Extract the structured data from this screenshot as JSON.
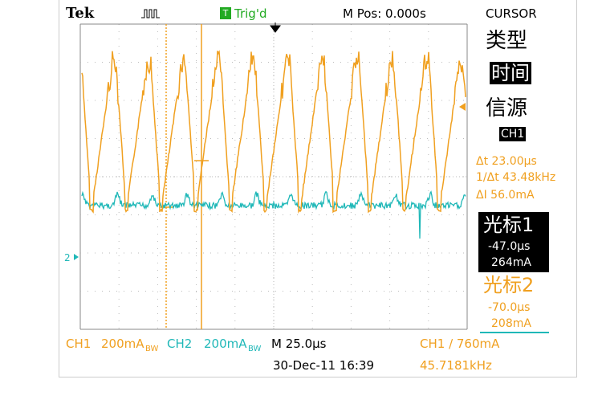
{
  "header": {
    "brand": "Tek",
    "trigger_icon": "T",
    "trigger_status": "Trig'd",
    "position": "M Pos: 0.000s"
  },
  "menu": {
    "title": "CURSOR",
    "type_label": "类型",
    "type_value": "时间",
    "source_label": "信源",
    "source_value": "CH1",
    "delta_t": "Δt 23.00µs",
    "inverse_delta_t": "1/Δt 43.48kHz",
    "delta_i": "ΔI 56.0mA",
    "cursor1": {
      "label": "光标1",
      "time": "-47.0µs",
      "value": "264mA"
    },
    "cursor2": {
      "label": "光标2",
      "time": "-70.0µs",
      "value": "208mA"
    }
  },
  "screen": {
    "ch2_marker": "2"
  },
  "footer": {
    "ch1": "CH1",
    "ch1_scale": "200mA",
    "ch1_bw": "BW",
    "ch2": "CH2",
    "ch2_scale": "200mA",
    "ch2_bw": "BW",
    "time_base": "M 25.0µs",
    "trigger": "CH1 ∕ 760mA",
    "date": "30-Dec-11 16:39",
    "frequency": "45.7181kHz"
  }
}
